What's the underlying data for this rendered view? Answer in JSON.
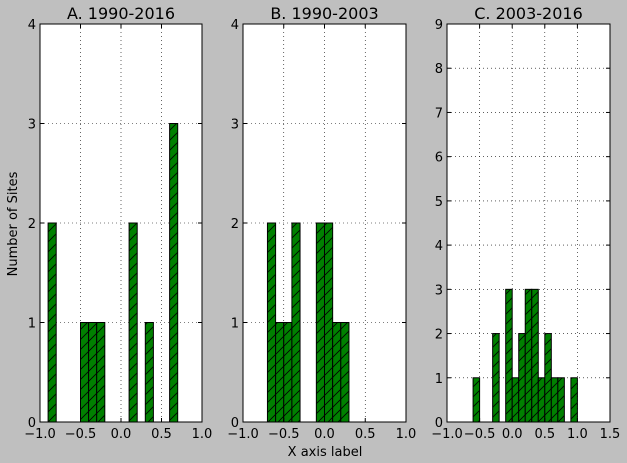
{
  "figure": {
    "ylabel": "Number of Sites",
    "xlabel": "X axis label",
    "colors": {
      "background": "#bfbfbf",
      "bar_fill": "#008000",
      "hatch": "#000000",
      "plot_bg": "#ffffff",
      "grid": "#000000"
    }
  },
  "chart_data": [
    {
      "type": "bar",
      "title": "A. 1990-2016",
      "hatch": "diagonal",
      "xlim": [
        -1.0,
        1.0
      ],
      "ylim": [
        0,
        4
      ],
      "xticks": [
        "−1.0",
        "−0.5",
        "0.0",
        "0.5",
        "1.0"
      ],
      "xtick_values": [
        -1.0,
        -0.5,
        0.0,
        0.5,
        1.0
      ],
      "yticks": [
        "0",
        "1",
        "2",
        "3",
        "4"
      ],
      "yticks_shown": [
        "0",
        "1",
        "2",
        "3",
        "4"
      ],
      "ytick_values": [
        0,
        1,
        2,
        3,
        4
      ],
      "bin_width": 0.1,
      "bins": [
        {
          "x0": -0.9,
          "x1": -0.8,
          "count": 2
        },
        {
          "x0": -0.5,
          "x1": -0.4,
          "count": 1
        },
        {
          "x0": -0.4,
          "x1": -0.3,
          "count": 1
        },
        {
          "x0": -0.3,
          "x1": -0.2,
          "count": 1
        },
        {
          "x0": 0.1,
          "x1": 0.2,
          "count": 2
        },
        {
          "x0": 0.3,
          "x1": 0.4,
          "count": 1
        },
        {
          "x0": 0.6,
          "x1": 0.7,
          "count": 3
        }
      ],
      "grid": true
    },
    {
      "type": "bar",
      "title": "B. 1990-2003",
      "hatch": "diagonal",
      "xlim": [
        -1.0,
        1.0
      ],
      "ylim": [
        0,
        4
      ],
      "xticks": [
        "−1.0",
        "−0.5",
        "0.0",
        "0.5",
        "1.0"
      ],
      "xtick_values": [
        -1.0,
        -0.5,
        0.0,
        0.5,
        1.0
      ],
      "yticks": [
        "0",
        "1",
        "2",
        "3",
        "4"
      ],
      "yticks_shown": [
        "0",
        "1",
        "2",
        "3",
        "4"
      ],
      "ytick_values": [
        0,
        1,
        2,
        3,
        4
      ],
      "bin_width": 0.1,
      "bins": [
        {
          "x0": -0.7,
          "x1": -0.6,
          "count": 2
        },
        {
          "x0": -0.6,
          "x1": -0.5,
          "count": 1
        },
        {
          "x0": -0.5,
          "x1": -0.4,
          "count": 1
        },
        {
          "x0": -0.4,
          "x1": -0.3,
          "count": 2
        },
        {
          "x0": -0.1,
          "x1": 0.0,
          "count": 2
        },
        {
          "x0": 0.0,
          "x1": 0.1,
          "count": 2
        },
        {
          "x0": 0.1,
          "x1": 0.2,
          "count": 1
        },
        {
          "x0": 0.2,
          "x1": 0.3,
          "count": 1
        }
      ],
      "grid": true
    },
    {
      "type": "bar",
      "title": "C. 2003-2016",
      "hatch": "diagonal",
      "xlim": [
        -1.0,
        1.5
      ],
      "ylim": [
        0,
        9
      ],
      "xticks": [
        "−1.0",
        "−0.5",
        "0.0",
        "0.5",
        "1.0",
        "1.5"
      ],
      "xtick_values": [
        -1.0,
        -0.5,
        0.0,
        0.5,
        1.0,
        1.5
      ],
      "yticks": [
        "0",
        "1",
        "2",
        "3",
        "4",
        "5",
        "6",
        "7",
        "8",
        "9"
      ],
      "yticks_shown": [
        "0",
        "1",
        "2",
        "3",
        "4",
        "5",
        "6",
        "7",
        "8",
        "9"
      ],
      "ytick_values": [
        0,
        1,
        2,
        3,
        4,
        5,
        6,
        7,
        8,
        9
      ],
      "bin_width": 0.1,
      "bins": [
        {
          "x0": -0.6,
          "x1": -0.5,
          "count": 1
        },
        {
          "x0": -0.3,
          "x1": -0.2,
          "count": 2
        },
        {
          "x0": -0.1,
          "x1": 0.0,
          "count": 3
        },
        {
          "x0": 0.0,
          "x1": 0.1,
          "count": 1
        },
        {
          "x0": 0.1,
          "x1": 0.2,
          "count": 2
        },
        {
          "x0": 0.2,
          "x1": 0.3,
          "count": 3
        },
        {
          "x0": 0.3,
          "x1": 0.4,
          "count": 3
        },
        {
          "x0": 0.4,
          "x1": 0.5,
          "count": 1
        },
        {
          "x0": 0.5,
          "x1": 0.6,
          "count": 2
        },
        {
          "x0": 0.6,
          "x1": 0.7,
          "count": 1
        },
        {
          "x0": 0.7,
          "x1": 0.8,
          "count": 1
        },
        {
          "x0": 0.9,
          "x1": 1.0,
          "count": 1
        }
      ],
      "grid": true
    }
  ]
}
